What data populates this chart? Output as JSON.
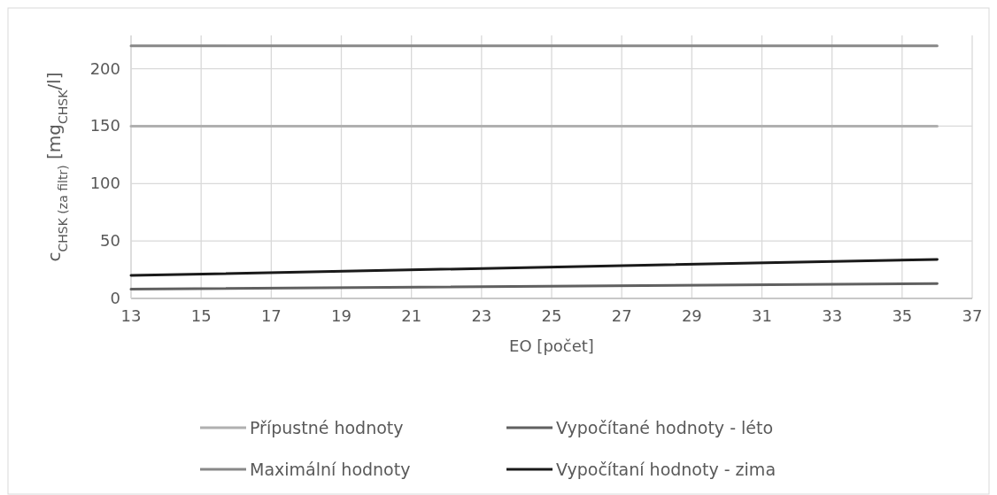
{
  "chart_data": {
    "type": "line",
    "xlabel": "EO [počet]",
    "ylabel": "c$_{CHSK (za filtr)}$ [mg$_{CHSK}$/l]",
    "x": [
      13,
      36
    ],
    "xlim": [
      13,
      37
    ],
    "xticks": [
      13,
      15,
      17,
      19,
      21,
      23,
      25,
      27,
      29,
      31,
      33,
      35,
      37
    ],
    "ylim": [
      0,
      229
    ],
    "yticks": [
      0,
      50,
      100,
      150,
      200
    ],
    "grid": true,
    "legend": "bottom",
    "marker": "none",
    "line_style": "solid",
    "series": [
      {
        "name": "Přípustné hodnoty",
        "color": "#b0b0b0",
        "values": [
          150,
          150
        ]
      },
      {
        "name": "Maximální hodnoty",
        "color": "#888888",
        "values": [
          220,
          220
        ]
      },
      {
        "name": "Vypočítané hodnoty - léto",
        "color": "#606060",
        "values": [
          8,
          13
        ]
      },
      {
        "name": "Vypočítaní hodnoty - zima",
        "color": "#1a1a1a",
        "values": [
          20,
          34
        ]
      }
    ]
  }
}
